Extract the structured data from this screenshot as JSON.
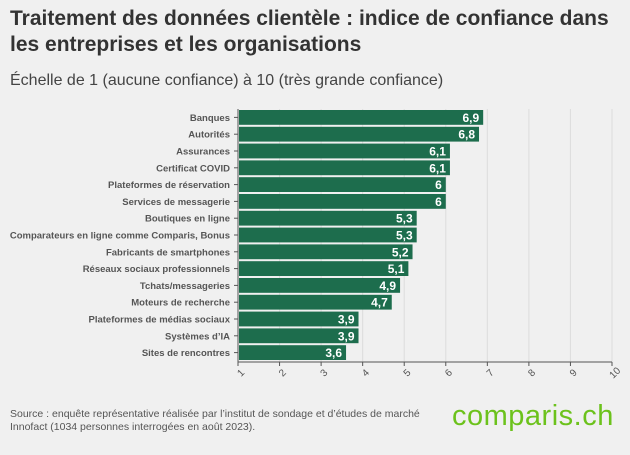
{
  "title": "Traitement des données clientèle : indice de confiance dans les entreprises et les organisations",
  "subtitle": "Échelle de 1 (aucune confiance) à 10 (très grande confiance)",
  "source": "Source : enquête représentative réalisée par l’institut de sondage et d’études de marché Innofact (1034 personnes interrogées en août 2023).",
  "logo": "comparis.ch",
  "colors": {
    "bar": "#1d6d4d",
    "background": "#f0f0f0",
    "logo": "#6cc21c"
  },
  "chart_data": {
    "type": "bar",
    "orientation": "horizontal",
    "categories": [
      "Banques",
      "Autorités",
      "Assurances",
      "Certificat COVID",
      "Plateformes de réservation",
      "Services de messagerie",
      "Boutiques en ligne",
      "Comparateurs en ligne comme Comparis, Bonus",
      "Fabricants de smartphones",
      "Réseaux sociaux professionnels",
      "Tchats/messageries",
      "Moteurs de recherche",
      "Plateformes de médias sociaux",
      "Systèmes d’IA",
      "Sites de rencontres"
    ],
    "values": [
      6.9,
      6.8,
      6.1,
      6.1,
      6,
      6,
      5.3,
      5.3,
      5.2,
      5.1,
      4.9,
      4.7,
      3.9,
      3.9,
      3.6
    ],
    "data_labels": [
      "6,9",
      "6,8",
      "6,1",
      "6,1",
      "6",
      "6",
      "5,3",
      "5,3",
      "5,2",
      "5,1",
      "4,9",
      "4,7",
      "3,9",
      "3,9",
      "3,6"
    ],
    "xlim": [
      1,
      10
    ],
    "xticks": [
      "1",
      "2",
      "3",
      "4",
      "5",
      "6",
      "7",
      "8",
      "9",
      "10"
    ],
    "grid": true
  }
}
